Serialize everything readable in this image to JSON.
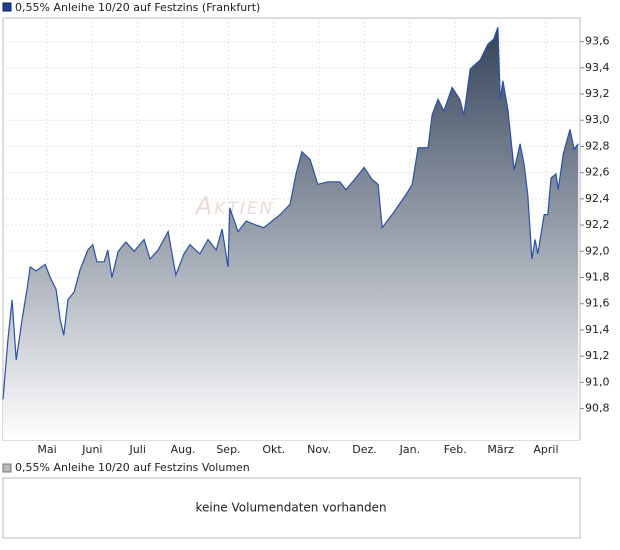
{
  "chart_data": {
    "type": "area",
    "title": "0,55% Anleihe 10/20 auf Festzins (Frankfurt)",
    "watermark": "Aktien",
    "series": [
      {
        "name": "0,55% Anleihe 10/20 auf Festzins (Frankfurt)",
        "color": "#2a50a8",
        "x": [
          -0.97,
          -0.86,
          -0.77,
          -0.68,
          -0.55,
          -0.44,
          -0.37,
          -0.24,
          -0.04,
          0.07,
          0.2,
          0.29,
          0.37,
          0.46,
          0.6,
          0.73,
          0.9,
          1.01,
          1.1,
          1.26,
          1.34,
          1.43,
          1.57,
          1.74,
          1.92,
          2.14,
          2.27,
          2.45,
          2.67,
          2.84,
          3.02,
          3.15,
          3.37,
          3.55,
          3.73,
          3.86,
          3.99,
          4.03,
          4.21,
          4.39,
          4.61,
          4.78,
          4.96,
          5.14,
          5.36,
          5.49,
          5.62,
          5.8,
          5.97,
          6.19,
          6.46,
          6.59,
          6.81,
          6.99,
          7.16,
          7.3,
          7.39,
          7.65,
          7.91,
          8.05,
          8.18,
          8.4,
          8.49,
          8.62,
          8.75,
          8.93,
          9.1,
          9.19,
          9.33,
          9.55,
          9.72,
          9.85,
          9.94,
          9.99,
          10.05,
          10.16,
          10.25,
          10.3,
          10.43,
          10.52,
          10.6,
          10.69,
          10.76,
          10.82,
          10.96,
          11.04,
          11.11,
          11.22,
          11.27,
          11.38,
          11.53,
          11.62,
          11.71
        ],
        "values": [
          90.87,
          91.33,
          91.63,
          91.17,
          91.48,
          91.71,
          91.88,
          91.85,
          91.9,
          91.8,
          91.71,
          91.48,
          91.36,
          91.63,
          91.69,
          91.86,
          92.01,
          92.05,
          91.92,
          91.92,
          92.01,
          91.8,
          92.0,
          92.07,
          92.0,
          92.09,
          91.94,
          92.01,
          92.15,
          91.82,
          91.98,
          92.05,
          91.98,
          92.09,
          92.01,
          92.17,
          91.88,
          92.33,
          92.15,
          92.23,
          92.2,
          92.18,
          92.23,
          92.28,
          92.36,
          92.59,
          92.76,
          92.7,
          92.51,
          92.53,
          92.53,
          92.47,
          92.56,
          92.64,
          92.55,
          92.51,
          92.18,
          92.3,
          92.43,
          92.51,
          92.79,
          92.79,
          93.04,
          93.16,
          93.07,
          93.25,
          93.16,
          93.04,
          93.39,
          93.46,
          93.58,
          93.62,
          93.71,
          93.16,
          93.3,
          93.08,
          92.78,
          92.62,
          92.82,
          92.66,
          92.43,
          91.94,
          92.09,
          91.98,
          92.28,
          92.28,
          92.56,
          92.59,
          92.47,
          92.74,
          92.93,
          92.78,
          92.82
        ]
      }
    ],
    "xlim": [
      -0.97,
      11.75
    ],
    "xticks": [
      {
        "value": 0,
        "label": "Mai"
      },
      {
        "value": 1,
        "label": "Juni"
      },
      {
        "value": 2,
        "label": "Juli"
      },
      {
        "value": 3,
        "label": "Aug."
      },
      {
        "value": 4,
        "label": "Sep."
      },
      {
        "value": 5,
        "label": "Okt."
      },
      {
        "value": 6,
        "label": "Nov."
      },
      {
        "value": 7,
        "label": "Dez."
      },
      {
        "value": 8,
        "label": "Jan."
      },
      {
        "value": 9,
        "label": "Feb."
      },
      {
        "value": 10,
        "label": "März"
      },
      {
        "value": 11,
        "label": "April"
      }
    ],
    "ylim": [
      90.56,
      93.78
    ],
    "yticks": [
      {
        "value": 90.8,
        "label": "90,8"
      },
      {
        "value": 91.0,
        "label": "91,0"
      },
      {
        "value": 91.2,
        "label": "91,2"
      },
      {
        "value": 91.4,
        "label": "91,4"
      },
      {
        "value": 91.6,
        "label": "91,6"
      },
      {
        "value": 91.8,
        "label": "91,8"
      },
      {
        "value": 92.0,
        "label": "92,0"
      },
      {
        "value": 92.2,
        "label": "92,2"
      },
      {
        "value": 92.4,
        "label": "92,4"
      },
      {
        "value": 92.6,
        "label": "92,6"
      },
      {
        "value": 92.8,
        "label": "92,8"
      },
      {
        "value": 93.0,
        "label": "93,0"
      },
      {
        "value": 93.2,
        "label": "93,2"
      },
      {
        "value": 93.4,
        "label": "93,4"
      },
      {
        "value": 93.6,
        "label": "93,6"
      }
    ],
    "grid": true
  },
  "volume_panel": {
    "legend": "0,55% Anleihe 10/20 auf Festzins Volumen",
    "message": "keine Volumendaten vorhanden"
  }
}
